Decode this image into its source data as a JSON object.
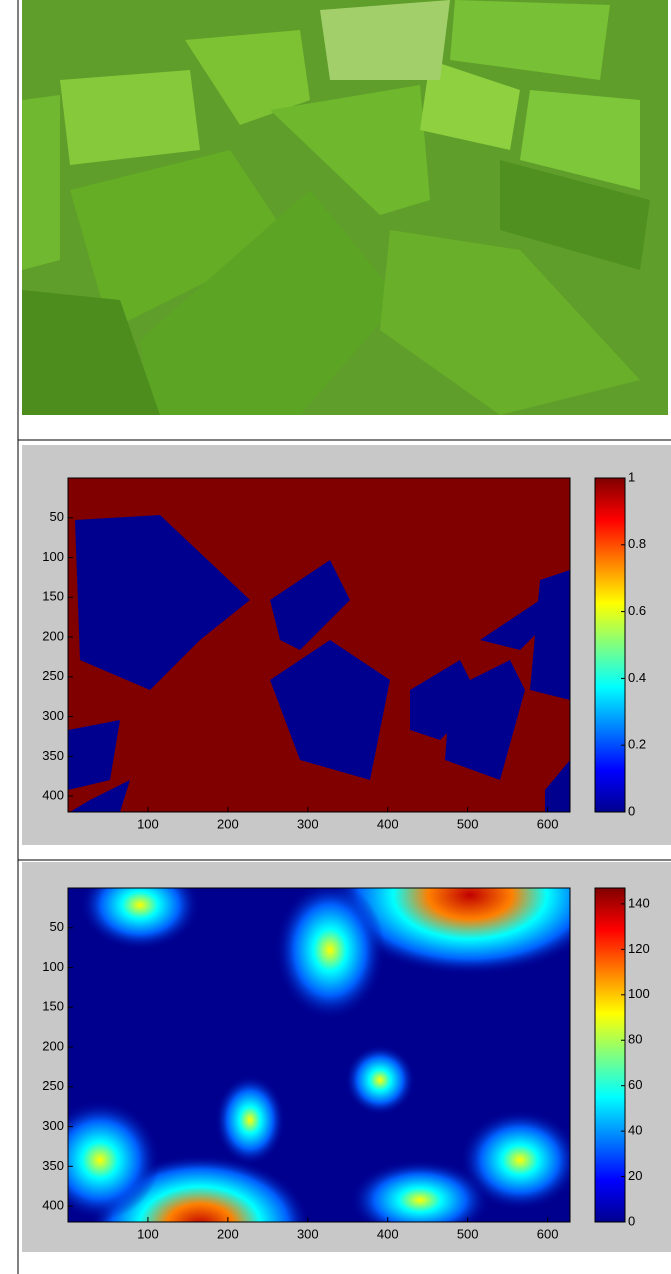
{
  "chart_data": [
    {
      "type": "heatmap",
      "xlim": [
        0,
        628
      ],
      "ylim": [
        420,
        0
      ],
      "xticks": [
        100,
        200,
        300,
        400,
        500,
        600
      ],
      "yticks": [
        50,
        100,
        150,
        200,
        250,
        300,
        350,
        400
      ],
      "colorbar_lim": [
        0,
        1
      ],
      "colorbar_ticks": [
        0,
        0.2,
        0.4,
        0.6,
        0.8,
        1
      ]
    },
    {
      "type": "heatmap",
      "xlim": [
        0,
        628
      ],
      "ylim": [
        420,
        0
      ],
      "xticks": [
        100,
        200,
        300,
        400,
        500,
        600
      ],
      "yticks": [
        50,
        100,
        150,
        200,
        250,
        300,
        350,
        400
      ],
      "colorbar_lim": [
        0,
        147
      ],
      "colorbar_ticks": [
        0,
        20,
        40,
        60,
        80,
        100,
        120,
        140
      ]
    }
  ]
}
